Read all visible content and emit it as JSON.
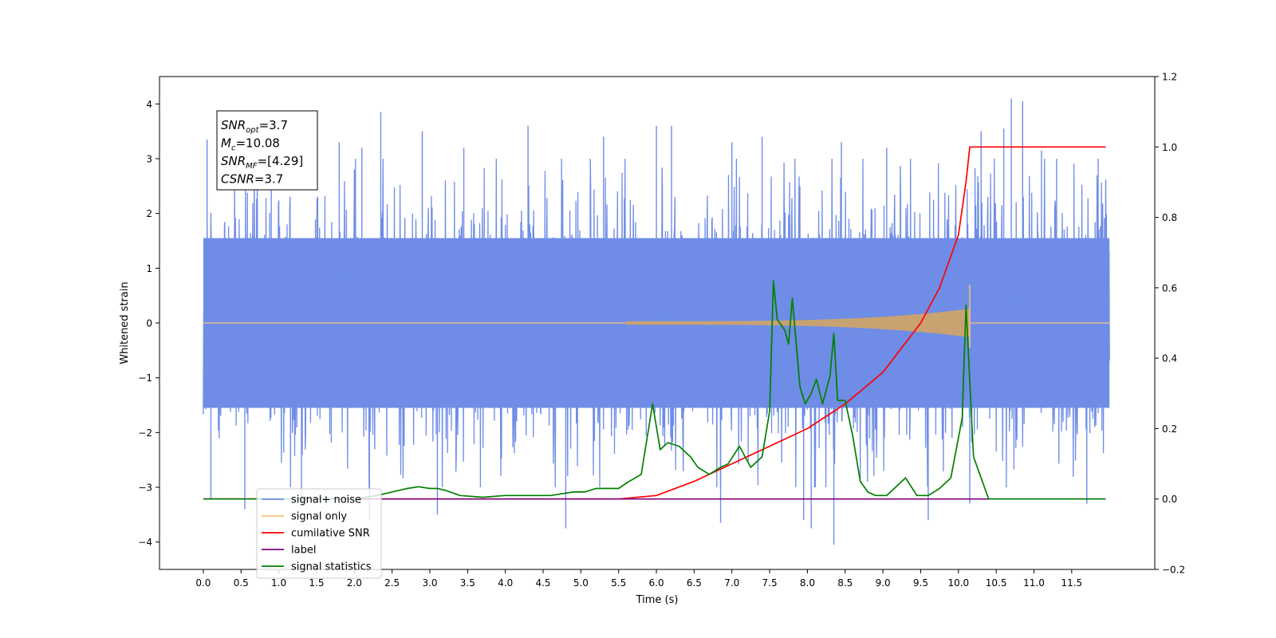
{
  "chart_data": {
    "type": "line",
    "xlabel": "Time (s)",
    "ylabel": "Whitened strain",
    "xlim": [
      -0.58,
      12.6
    ],
    "ylim": [
      -4.5,
      4.5
    ],
    "ylim_right": [
      -0.2,
      1.2
    ],
    "x_ticks": [
      "0.0",
      "0.5",
      "1.0",
      "1.5",
      "2.0",
      "2.5",
      "3.0",
      "3.5",
      "4.0",
      "4.5",
      "5.0",
      "5.5",
      "6.0",
      "6.5",
      "7.0",
      "7.5",
      "8.0",
      "8.5",
      "9.0",
      "9.5",
      "10.0",
      "10.5",
      "11.0",
      "11.5"
    ],
    "y_ticks": [
      "4",
      "3",
      "2",
      "1",
      "0",
      "−1",
      "−2",
      "−3",
      "−4"
    ],
    "y_ticks_right": [
      "1.2",
      "1.0",
      "0.8",
      "0.6",
      "0.4",
      "0.2",
      "0.0",
      "−0.2"
    ],
    "annotation": {
      "lines": [
        {
          "base": "SNR",
          "sub": "opt",
          "value": "=3.7"
        },
        {
          "base": "M",
          "sub": "c",
          "value": "=10.08"
        },
        {
          "base": "SNR",
          "sub": "MF",
          "value": "=[4.29]"
        },
        {
          "base": "CSNR",
          "sub": "",
          "value": "=3.7"
        }
      ]
    },
    "legend": {
      "placement": "lower-left",
      "entries": [
        {
          "label": "signal+ noise",
          "color": "#6f8de6"
        },
        {
          "label": "signal only",
          "color": "#f7c27a"
        },
        {
          "label": "cumilative SNR",
          "color": "#ff0000"
        },
        {
          "label": "label",
          "color": "#800080"
        },
        {
          "label": "signal statistics",
          "color": "#008000"
        }
      ]
    },
    "series": [
      {
        "name": "signal+ noise",
        "axis": "left",
        "style": "noise band",
        "color": "#6f8de6",
        "x_range": [
          0.0,
          12.0
        ],
        "envelope": [
          -3.0,
          3.0
        ],
        "peaks": [
          {
            "x": 0.05,
            "y": 3.35
          },
          {
            "x": 0.1,
            "y": -3.2
          },
          {
            "x": 0.55,
            "y": -3.4
          },
          {
            "x": 0.9,
            "y": 3.3
          },
          {
            "x": 1.3,
            "y": -3.3
          },
          {
            "x": 1.8,
            "y": 3.3
          },
          {
            "x": 2.1,
            "y": 3.2
          },
          {
            "x": 2.35,
            "y": 3.85
          },
          {
            "x": 2.2,
            "y": -3.6
          },
          {
            "x": 2.9,
            "y": 3.5
          },
          {
            "x": 3.1,
            "y": -3.5
          },
          {
            "x": 3.45,
            "y": 3.2
          },
          {
            "x": 4.3,
            "y": 3.6
          },
          {
            "x": 4.8,
            "y": -3.75
          },
          {
            "x": 5.3,
            "y": 3.4
          },
          {
            "x": 6.0,
            "y": 3.6
          },
          {
            "x": 6.2,
            "y": 3.6
          },
          {
            "x": 6.85,
            "y": -3.65
          },
          {
            "x": 7.0,
            "y": 3.3
          },
          {
            "x": 7.4,
            "y": 3.4
          },
          {
            "x": 7.95,
            "y": -3.6
          },
          {
            "x": 8.05,
            "y": -3.75
          },
          {
            "x": 8.35,
            "y": -4.05
          },
          {
            "x": 8.45,
            "y": 3.3
          },
          {
            "x": 9.05,
            "y": 3.2
          },
          {
            "x": 9.6,
            "y": -3.6
          },
          {
            "x": 10.15,
            "y": -3.3
          },
          {
            "x": 10.3,
            "y": 3.5
          },
          {
            "x": 10.6,
            "y": 3.55
          },
          {
            "x": 10.7,
            "y": 4.1
          },
          {
            "x": 10.85,
            "y": 4.05
          },
          {
            "x": 11.1,
            "y": 3.15
          },
          {
            "x": 11.3,
            "y": 3.0
          },
          {
            "x": 11.7,
            "y": -3.3
          },
          {
            "x": 11.85,
            "y": 3.0
          }
        ]
      },
      {
        "name": "signal only",
        "axis": "left",
        "style": "chirp",
        "color": "#f7c27a",
        "onset": 5.6,
        "merger": 10.15,
        "peak_amp": 0.7
      },
      {
        "name": "cumilative SNR",
        "axis": "right",
        "color": "#ff0000",
        "x": [
          0,
          5.0,
          5.5,
          6.0,
          6.5,
          7.0,
          7.5,
          8.0,
          8.5,
          9.0,
          9.5,
          9.75,
          10.0,
          10.1,
          10.15,
          11.95
        ],
        "y": [
          0,
          0,
          0.0,
          0.01,
          0.05,
          0.1,
          0.15,
          0.2,
          0.27,
          0.36,
          0.5,
          0.6,
          0.75,
          0.9,
          1.0,
          1.0
        ]
      },
      {
        "name": "label",
        "axis": "right",
        "color": "#800080",
        "x": [
          0,
          11.95
        ],
        "y": [
          0,
          0
        ]
      },
      {
        "name": "signal statistics",
        "axis": "right",
        "color": "#008000",
        "x": [
          0,
          2.0,
          2.3,
          2.5,
          2.7,
          2.85,
          3.0,
          3.1,
          3.2,
          3.4,
          3.7,
          4.0,
          4.3,
          4.6,
          4.9,
          5.05,
          5.2,
          5.5,
          5.6,
          5.8,
          5.95,
          6.05,
          6.15,
          6.3,
          6.45,
          6.55,
          6.7,
          6.85,
          6.95,
          7.1,
          7.25,
          7.4,
          7.5,
          7.55,
          7.6,
          7.7,
          7.75,
          7.8,
          7.9,
          7.97,
          8.05,
          8.12,
          8.2,
          8.3,
          8.35,
          8.4,
          8.5,
          8.6,
          8.7,
          8.8,
          8.9,
          9.05,
          9.15,
          9.3,
          9.45,
          9.6,
          9.75,
          9.9,
          10.05,
          10.1,
          10.2,
          10.4,
          11.95
        ],
        "y": [
          0,
          0.0,
          0.01,
          0.02,
          0.03,
          0.035,
          0.03,
          0.03,
          0.025,
          0.01,
          0.005,
          0.01,
          0.01,
          0.01,
          0.02,
          0.02,
          0.03,
          0.03,
          0.045,
          0.07,
          0.27,
          0.14,
          0.16,
          0.15,
          0.12,
          0.09,
          0.07,
          0.09,
          0.1,
          0.15,
          0.09,
          0.12,
          0.25,
          0.62,
          0.51,
          0.48,
          0.44,
          0.57,
          0.32,
          0.27,
          0.3,
          0.34,
          0.27,
          0.35,
          0.47,
          0.28,
          0.28,
          0.18,
          0.05,
          0.02,
          0.01,
          0.01,
          0.03,
          0.06,
          0.01,
          0.01,
          0.03,
          0.06,
          0.23,
          0.55,
          0.12,
          0.0,
          0.0
        ]
      }
    ]
  }
}
